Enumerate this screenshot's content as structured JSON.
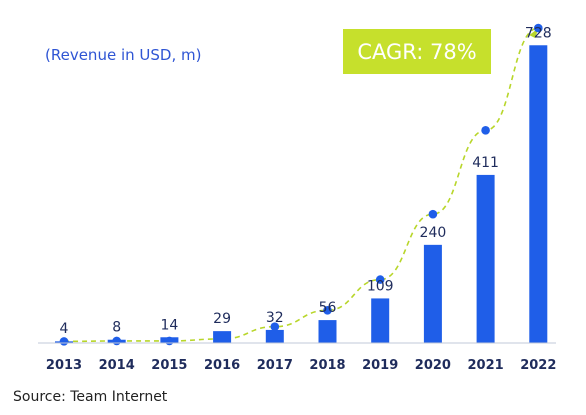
{
  "chart_data": {
    "type": "bar",
    "title": "",
    "subtitle": "",
    "unit_label": "(Revenue in USD, m)",
    "categories": [
      "2013",
      "2014",
      "2015",
      "2016",
      "2017",
      "2018",
      "2019",
      "2020",
      "2021",
      "2022"
    ],
    "series": [
      {
        "name": "",
        "values": [
          4,
          8,
          14,
          29,
          32,
          56,
          109,
          240,
          411,
          728
        ]
      }
    ],
    "trend_points": [
      4,
      5,
      5,
      10,
      40,
      80,
      155,
      315,
      520,
      770
    ],
    "ylim": [
      0,
      780
    ],
    "annotation": "CAGR: 78%",
    "grid": false,
    "legend": "none"
  },
  "source": "Source: Team Internet",
  "colors": {
    "bar": "#1f5ee8",
    "trend_line": "#b8d62a",
    "trend_point": "#1f5ee8",
    "cagr_box": "#c6e02c",
    "axis": "#c0c8d8"
  }
}
